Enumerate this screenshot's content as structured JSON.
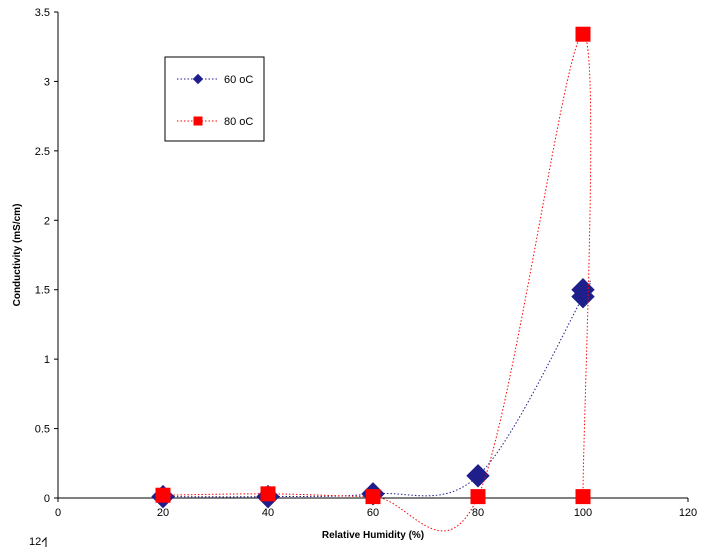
{
  "chart_data": {
    "type": "scatter",
    "xlabel": "Relative Humidity (%)",
    "ylabel": "Conductivity (mS/cm)",
    "xlim": [
      0,
      120
    ],
    "ylim": [
      0,
      3.5
    ],
    "x_ticks": [
      "0",
      "20",
      "40",
      "60",
      "80",
      "100",
      "120"
    ],
    "y_ticks": [
      "0",
      "0.5",
      "1",
      "1.5",
      "2",
      "2.5",
      "3",
      "3.5"
    ],
    "grid": false,
    "legend_position": "top-left",
    "series": [
      {
        "name": "60 oC",
        "color": "#1f1f8c",
        "marker": "diamond",
        "line": "dotted",
        "points": [
          {
            "x": 20,
            "y": 0.01
          },
          {
            "x": 40,
            "y": 0.01
          },
          {
            "x": 60,
            "y": 0.03
          },
          {
            "x": 80,
            "y": 0.16
          },
          {
            "x": 100,
            "y": 1.45
          },
          {
            "x": 100,
            "y": 1.5
          }
        ]
      },
      {
        "name": "80 oC",
        "color": "#ff0000",
        "marker": "square",
        "line": "dotted",
        "points": [
          {
            "x": 20,
            "y": 0.02
          },
          {
            "x": 40,
            "y": 0.03
          },
          {
            "x": 60,
            "y": 0.01
          },
          {
            "x": 80,
            "y": 0.01
          },
          {
            "x": 100,
            "y": 3.34
          },
          {
            "x": 100,
            "y": 0.01
          }
        ]
      }
    ]
  },
  "footer_label": "12"
}
